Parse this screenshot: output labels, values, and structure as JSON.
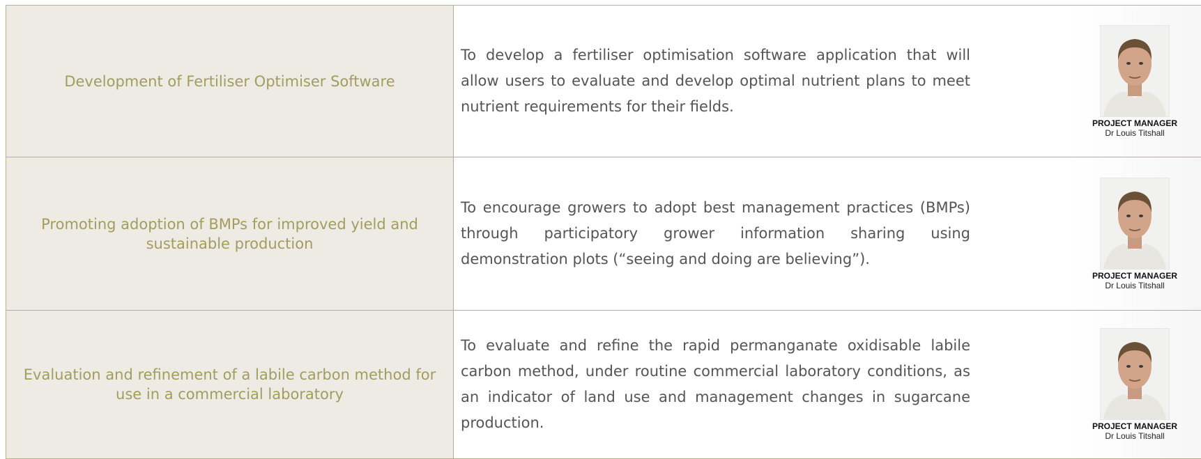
{
  "rows": [
    {
      "title": "Development of Fertiliser Optimiser Software",
      "description": "To develop a fertiliser optimisation software application that will allow users to evaluate and develop optimal nutrient plans to meet nutrient requirements for their fields.",
      "role": "PROJECT MANAGER",
      "name": "Dr Louis Titshall"
    },
    {
      "title": "Promoting adoption of BMPs for improved yield and sustainable production",
      "description": "To encourage growers to adopt best management practices (BMPs) through participatory grower information sharing using demonstration plots (“seeing and doing are believing”).",
      "role": "PROJECT MANAGER",
      "name": "Dr Louis Titshall"
    },
    {
      "title": "Evaluation and refinement of a labile carbon method for use in a commercial laboratory",
      "description": "To evaluate and refine the rapid permanganate oxidisable labile carbon method, under routine commercial laboratory conditions, as an indicator of land use and management changes in sugarcane production.",
      "role": "PROJECT MANAGER",
      "name": "Dr Louis Titshall"
    }
  ]
}
